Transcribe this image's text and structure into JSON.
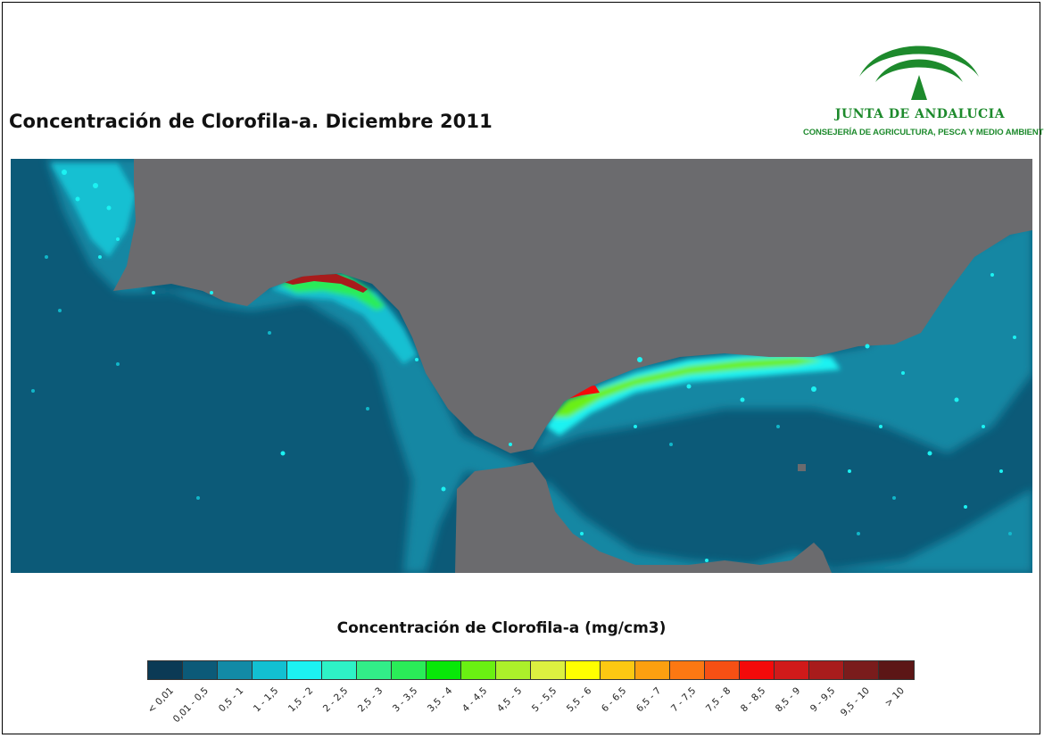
{
  "title": "Concentración de Clorofila-a. Diciembre 2011",
  "logo": {
    "name": "JUNTA DE ANDALUCIA",
    "subtitle": "CONSEJERÍA DE AGRICULTURA, PESCA Y MEDIO AMBIENTE",
    "brand_color": "#1d8a2c",
    "icon": "junta-de-andalucia-emblem"
  },
  "map": {
    "land_color": "#6b6b6e",
    "water_color": "#0c5a78"
  },
  "legend": {
    "title": "Concentración de Clorofila-a (mg/cm3)",
    "classes": [
      {
        "label": "< 0,01",
        "color": "#0b3a55"
      },
      {
        "label": "0,01 - 0,5",
        "color": "#0c5a78"
      },
      {
        "label": "0,5 - 1",
        "color": "#128aa6"
      },
      {
        "label": "1 - 1,5",
        "color": "#12c0d2"
      },
      {
        "label": "1,5 - 2",
        "color": "#1cf2f2"
      },
      {
        "label": "2 - 2,5",
        "color": "#2ef2c6"
      },
      {
        "label": "2,5 - 3",
        "color": "#32ee88"
      },
      {
        "label": "3 - 3,5",
        "color": "#2aec58"
      },
      {
        "label": "3,5 - 4",
        "color": "#08e808"
      },
      {
        "label": "4 - 4,5",
        "color": "#6af012"
      },
      {
        "label": "4,5 - 5",
        "color": "#acf02a"
      },
      {
        "label": "5 - 5,5",
        "color": "#dcf040"
      },
      {
        "label": "5,5 - 6",
        "color": "#ffff00"
      },
      {
        "label": "6 - 6,5",
        "color": "#fcc812"
      },
      {
        "label": "6,5 - 7",
        "color": "#fca010"
      },
      {
        "label": "7 - 7,5",
        "color": "#fc7812"
      },
      {
        "label": "7,5 - 8",
        "color": "#f65014"
      },
      {
        "label": "8 - 8,5",
        "color": "#f40a0a"
      },
      {
        "label": "8,5 - 9",
        "color": "#d01a1a"
      },
      {
        "label": "9 - 9,5",
        "color": "#a81c1c"
      },
      {
        "label": "9,5 - 10",
        "color": "#7a1c1c"
      },
      {
        "label": "> 10",
        "color": "#5c1616"
      }
    ]
  }
}
